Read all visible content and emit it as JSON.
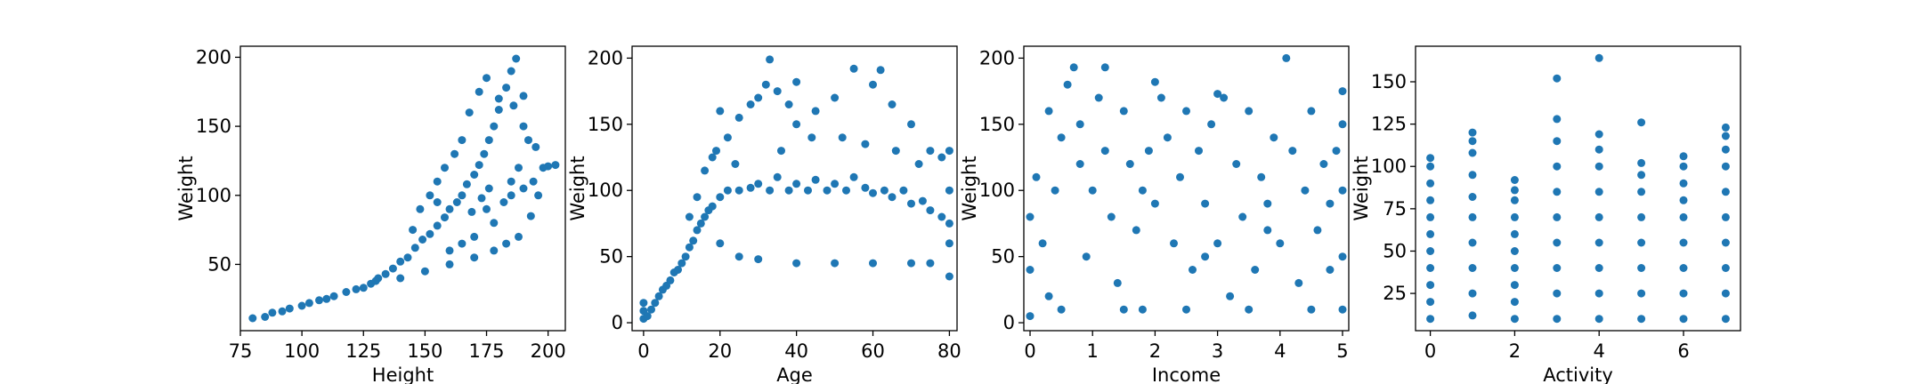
{
  "figure": {
    "background": "#ffffff",
    "point_color": "#1f77b4"
  },
  "chart_data": [
    {
      "type": "scatter",
      "title": "",
      "xlabel": "Height",
      "ylabel": "Weight",
      "xlim": [
        75,
        207
      ],
      "ylim": [
        2,
        208
      ],
      "xticks": [
        75,
        100,
        125,
        150,
        175,
        200
      ],
      "yticks": [
        50,
        100,
        150,
        200
      ],
      "grid": false,
      "points": [
        [
          80,
          11
        ],
        [
          85,
          12
        ],
        [
          88,
          15
        ],
        [
          92,
          16
        ],
        [
          95,
          18
        ],
        [
          100,
          20
        ],
        [
          103,
          22
        ],
        [
          107,
          24
        ],
        [
          110,
          25
        ],
        [
          113,
          27
        ],
        [
          118,
          30
        ],
        [
          122,
          32
        ],
        [
          125,
          33
        ],
        [
          128,
          36
        ],
        [
          131,
          40
        ],
        [
          134,
          43
        ],
        [
          137,
          47
        ],
        [
          140,
          52
        ],
        [
          143,
          55
        ],
        [
          146,
          62
        ],
        [
          149,
          68
        ],
        [
          152,
          72
        ],
        [
          155,
          78
        ],
        [
          158,
          84
        ],
        [
          160,
          90
        ],
        [
          163,
          95
        ],
        [
          165,
          100
        ],
        [
          167,
          108
        ],
        [
          170,
          115
        ],
        [
          172,
          122
        ],
        [
          174,
          130
        ],
        [
          176,
          140
        ],
        [
          178,
          150
        ],
        [
          180,
          162
        ],
        [
          183,
          178
        ],
        [
          185,
          190
        ],
        [
          187,
          199
        ],
        [
          190,
          172
        ],
        [
          195,
          135
        ],
        [
          200,
          121
        ],
        [
          203,
          122
        ],
        [
          150,
          45
        ],
        [
          160,
          50
        ],
        [
          170,
          55
        ],
        [
          178,
          60
        ],
        [
          183,
          65
        ],
        [
          188,
          70
        ],
        [
          193,
          85
        ],
        [
          196,
          100
        ],
        [
          140,
          40
        ],
        [
          130,
          38
        ],
        [
          165,
          140
        ],
        [
          168,
          160
        ],
        [
          172,
          175
        ],
        [
          175,
          185
        ],
        [
          180,
          170
        ],
        [
          186,
          165
        ],
        [
          190,
          150
        ],
        [
          192,
          140
        ],
        [
          155,
          110
        ],
        [
          158,
          120
        ],
        [
          162,
          130
        ],
        [
          145,
          75
        ],
        [
          148,
          90
        ],
        [
          152,
          100
        ],
        [
          155,
          95
        ],
        [
          175,
          90
        ],
        [
          178,
          80
        ],
        [
          182,
          95
        ],
        [
          185,
          110
        ],
        [
          188,
          120
        ],
        [
          170,
          70
        ],
        [
          165,
          65
        ],
        [
          160,
          60
        ],
        [
          176,
          105
        ],
        [
          173,
          98
        ],
        [
          169,
          88
        ],
        [
          185,
          100
        ],
        [
          190,
          105
        ],
        [
          194,
          110
        ],
        [
          198,
          120
        ]
      ]
    },
    {
      "type": "scatter",
      "title": "",
      "xlabel": "Age",
      "ylabel": "Weight",
      "xlim": [
        -3,
        82
      ],
      "ylim": [
        -6,
        209
      ],
      "xticks": [
        0,
        20,
        40,
        60,
        80
      ],
      "yticks": [
        0,
        50,
        100,
        150,
        200
      ],
      "grid": false,
      "points": [
        [
          0,
          3
        ],
        [
          0,
          9
        ],
        [
          0,
          15
        ],
        [
          1,
          5
        ],
        [
          2,
          10
        ],
        [
          3,
          15
        ],
        [
          4,
          20
        ],
        [
          5,
          25
        ],
        [
          6,
          28
        ],
        [
          7,
          32
        ],
        [
          8,
          38
        ],
        [
          9,
          40
        ],
        [
          10,
          45
        ],
        [
          11,
          50
        ],
        [
          12,
          57
        ],
        [
          13,
          62
        ],
        [
          14,
          70
        ],
        [
          15,
          75
        ],
        [
          16,
          80
        ],
        [
          17,
          85
        ],
        [
          18,
          88
        ],
        [
          20,
          95
        ],
        [
          22,
          100
        ],
        [
          25,
          100
        ],
        [
          28,
          102
        ],
        [
          30,
          105
        ],
        [
          33,
          100
        ],
        [
          35,
          110
        ],
        [
          38,
          100
        ],
        [
          40,
          105
        ],
        [
          43,
          100
        ],
        [
          45,
          108
        ],
        [
          48,
          100
        ],
        [
          50,
          105
        ],
        [
          53,
          100
        ],
        [
          55,
          110
        ],
        [
          58,
          102
        ],
        [
          60,
          98
        ],
        [
          63,
          100
        ],
        [
          65,
          95
        ],
        [
          68,
          100
        ],
        [
          70,
          90
        ],
        [
          73,
          92
        ],
        [
          75,
          85
        ],
        [
          78,
          80
        ],
        [
          80,
          75
        ],
        [
          80,
          35
        ],
        [
          80,
          60
        ],
        [
          80,
          100
        ],
        [
          80,
          130
        ],
        [
          20,
          60
        ],
        [
          25,
          50
        ],
        [
          30,
          48
        ],
        [
          40,
          45
        ],
        [
          50,
          45
        ],
        [
          60,
          45
        ],
        [
          70,
          45
        ],
        [
          75,
          45
        ],
        [
          22,
          140
        ],
        [
          25,
          155
        ],
        [
          28,
          165
        ],
        [
          30,
          170
        ],
        [
          32,
          180
        ],
        [
          35,
          175
        ],
        [
          38,
          165
        ],
        [
          40,
          150
        ],
        [
          45,
          160
        ],
        [
          50,
          170
        ],
        [
          55,
          192
        ],
        [
          60,
          180
        ],
        [
          62,
          191
        ],
        [
          65,
          165
        ],
        [
          70,
          150
        ],
        [
          75,
          130
        ],
        [
          78,
          125
        ],
        [
          33,
          199
        ],
        [
          40,
          182
        ],
        [
          12,
          80
        ],
        [
          14,
          95
        ],
        [
          16,
          115
        ],
        [
          18,
          125
        ],
        [
          19,
          130
        ],
        [
          20,
          160
        ],
        [
          24,
          120
        ],
        [
          36,
          130
        ],
        [
          44,
          140
        ],
        [
          52,
          140
        ],
        [
          58,
          135
        ],
        [
          66,
          130
        ],
        [
          72,
          120
        ]
      ]
    },
    {
      "type": "scatter",
      "title": "",
      "xlabel": "Income",
      "ylabel": "Weight",
      "xlim": [
        -0.1,
        5.1
      ],
      "ylim": [
        -6,
        209
      ],
      "xticks": [
        0,
        1,
        2,
        3,
        4,
        5
      ],
      "yticks": [
        0,
        50,
        100,
        150,
        200
      ],
      "grid": false,
      "points": [
        [
          0,
          5
        ],
        [
          0,
          40
        ],
        [
          0,
          80
        ],
        [
          0.1,
          110
        ],
        [
          0.2,
          60
        ],
        [
          0.3,
          20
        ],
        [
          0.4,
          100
        ],
        [
          0.5,
          140
        ],
        [
          0.6,
          180
        ],
        [
          0.7,
          193
        ],
        [
          0.8,
          150
        ],
        [
          0.9,
          50
        ],
        [
          1,
          100
        ],
        [
          1.1,
          170
        ],
        [
          1.2,
          130
        ],
        [
          1.3,
          80
        ],
        [
          1.4,
          30
        ],
        [
          1.5,
          160
        ],
        [
          1.6,
          120
        ],
        [
          1.7,
          70
        ],
        [
          1.8,
          10
        ],
        [
          1.9,
          130
        ],
        [
          2,
          90
        ],
        [
          2.1,
          170
        ],
        [
          2.2,
          140
        ],
        [
          2.3,
          60
        ],
        [
          2.4,
          110
        ],
        [
          2.5,
          160
        ],
        [
          2.6,
          40
        ],
        [
          2.7,
          130
        ],
        [
          2.8,
          90
        ],
        [
          2.9,
          150
        ],
        [
          3,
          60
        ],
        [
          3.1,
          170
        ],
        [
          3.2,
          20
        ],
        [
          3.3,
          120
        ],
        [
          3.4,
          80
        ],
        [
          3.5,
          160
        ],
        [
          3.6,
          40
        ],
        [
          3.7,
          110
        ],
        [
          3.8,
          90
        ],
        [
          3.9,
          140
        ],
        [
          4,
          60
        ],
        [
          4.1,
          200
        ],
        [
          4.2,
          130
        ],
        [
          4.3,
          30
        ],
        [
          4.4,
          100
        ],
        [
          4.5,
          160
        ],
        [
          4.6,
          70
        ],
        [
          4.7,
          120
        ],
        [
          4.8,
          90
        ],
        [
          4.9,
          130
        ],
        [
          5,
          10
        ],
        [
          5,
          50
        ],
        [
          5,
          100
        ],
        [
          5,
          150
        ],
        [
          5,
          175
        ],
        [
          0.5,
          10
        ],
        [
          1.5,
          10
        ],
        [
          2.5,
          10
        ],
        [
          3.5,
          10
        ],
        [
          4.5,
          10
        ],
        [
          0.3,
          160
        ],
        [
          2,
          182
        ],
        [
          3,
          173
        ],
        [
          1.2,
          193
        ],
        [
          0.8,
          120
        ],
        [
          1.8,
          100
        ],
        [
          2.8,
          50
        ],
        [
          3.8,
          70
        ],
        [
          4.8,
          40
        ]
      ]
    },
    {
      "type": "scatter",
      "title": "",
      "xlabel": "Activity",
      "ylabel": "Weight",
      "xlim": [
        -0.35,
        7.35
      ],
      "ylim": [
        3,
        171
      ],
      "xticks": [
        0,
        2,
        4,
        6
      ],
      "yticks": [
        25,
        50,
        75,
        100,
        125,
        150
      ],
      "grid": false,
      "points": [
        [
          0,
          10
        ],
        [
          0,
          20
        ],
        [
          0,
          30
        ],
        [
          0,
          40
        ],
        [
          0,
          50
        ],
        [
          0,
          60
        ],
        [
          0,
          70
        ],
        [
          0,
          80
        ],
        [
          0,
          90
        ],
        [
          0,
          100
        ],
        [
          0,
          105
        ],
        [
          1,
          12
        ],
        [
          1,
          25
        ],
        [
          1,
          40
        ],
        [
          1,
          55
        ],
        [
          1,
          70
        ],
        [
          1,
          82
        ],
        [
          1,
          95
        ],
        [
          1,
          108
        ],
        [
          1,
          115
        ],
        [
          1,
          120
        ],
        [
          2,
          10
        ],
        [
          2,
          20
        ],
        [
          2,
          30
        ],
        [
          2,
          40
        ],
        [
          2,
          50
        ],
        [
          2,
          60
        ],
        [
          2,
          70
        ],
        [
          2,
          80
        ],
        [
          2,
          86
        ],
        [
          2,
          92
        ],
        [
          3,
          10
        ],
        [
          3,
          25
        ],
        [
          3,
          40
        ],
        [
          3,
          55
        ],
        [
          3,
          70
        ],
        [
          3,
          85
        ],
        [
          3,
          100
        ],
        [
          3,
          115
        ],
        [
          3,
          128
        ],
        [
          3,
          152
        ],
        [
          4,
          10
        ],
        [
          4,
          25
        ],
        [
          4,
          40
        ],
        [
          4,
          55
        ],
        [
          4,
          70
        ],
        [
          4,
          85
        ],
        [
          4,
          100
        ],
        [
          4,
          110
        ],
        [
          4,
          119
        ],
        [
          4,
          164
        ],
        [
          5,
          10
        ],
        [
          5,
          25
        ],
        [
          5,
          40
        ],
        [
          5,
          55
        ],
        [
          5,
          70
        ],
        [
          5,
          85
        ],
        [
          5,
          95
        ],
        [
          5,
          102
        ],
        [
          5,
          126
        ],
        [
          6,
          10
        ],
        [
          6,
          25
        ],
        [
          6,
          40
        ],
        [
          6,
          55
        ],
        [
          6,
          70
        ],
        [
          6,
          80
        ],
        [
          6,
          90
        ],
        [
          6,
          100
        ],
        [
          6,
          106
        ],
        [
          7,
          10
        ],
        [
          7,
          25
        ],
        [
          7,
          40
        ],
        [
          7,
          55
        ],
        [
          7,
          70
        ],
        [
          7,
          85
        ],
        [
          7,
          100
        ],
        [
          7,
          110
        ],
        [
          7,
          118
        ],
        [
          7,
          123
        ]
      ]
    }
  ]
}
